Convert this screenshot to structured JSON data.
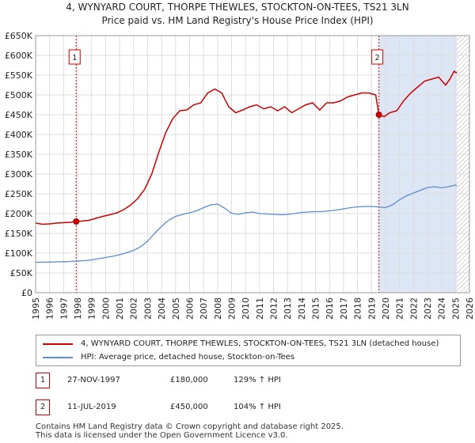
{
  "chart_data": {
    "type": "line",
    "title": "4, WYNYARD COURT, THORPE THEWLES, STOCKTON-ON-TEES, TS21 3LN",
    "subtitle": "Price paid vs. HM Land Registry's House Price Index (HPI)",
    "xlim": [
      1995,
      2026
    ],
    "ylim": [
      0,
      650000
    ],
    "x_ticks": [
      "1995",
      "1996",
      "1997",
      "1998",
      "1999",
      "2000",
      "2001",
      "2002",
      "2003",
      "2004",
      "2005",
      "2006",
      "2007",
      "2008",
      "2009",
      "2010",
      "2011",
      "2012",
      "2013",
      "2014",
      "2015",
      "2016",
      "2017",
      "2018",
      "2019",
      "2020",
      "2021",
      "2022",
      "2023",
      "2024",
      "2025",
      "2026"
    ],
    "y_ticks": [
      "£0",
      "£50K",
      "£100K",
      "£150K",
      "£200K",
      "£250K",
      "£300K",
      "£350K",
      "£400K",
      "£450K",
      "£500K",
      "£550K",
      "£600K",
      "£650K"
    ],
    "colors": {
      "property": "#cc0000",
      "hpi": "#5b8bd0",
      "shade": "#dde6f5",
      "grid": "#dddddd"
    },
    "series": [
      {
        "name": "4, WYNYARD COURT, THORPE THEWLES, STOCKTON-ON-TEES, TS21 3LN (detached house)",
        "color": "#cc0000",
        "x": [
          1995.0,
          1995.5,
          1996.0,
          1996.5,
          1997.0,
          1997.5,
          1997.9,
          1998.3,
          1998.8,
          1999.3,
          1999.8,
          2000.3,
          2000.8,
          2001.3,
          2001.8,
          2002.3,
          2002.8,
          2003.3,
          2003.8,
          2004.3,
          2004.8,
          2005.3,
          2005.8,
          2006.3,
          2006.8,
          2007.3,
          2007.8,
          2008.3,
          2008.8,
          2009.3,
          2009.8,
          2010.3,
          2010.8,
          2011.3,
          2011.8,
          2012.3,
          2012.8,
          2013.3,
          2013.8,
          2014.3,
          2014.8,
          2015.3,
          2015.8,
          2016.3,
          2016.8,
          2017.3,
          2017.8,
          2018.3,
          2018.8,
          2019.3,
          2019.53,
          2019.9,
          2020.3,
          2020.8,
          2021.3,
          2021.8,
          2022.3,
          2022.8,
          2023.3,
          2023.8,
          2024.3,
          2024.6,
          2024.9,
          2025.1
        ],
        "values": [
          176000,
          173000,
          174000,
          176000,
          177000,
          178000,
          180000,
          181000,
          183000,
          188000,
          193000,
          197000,
          202000,
          210000,
          222000,
          238000,
          262000,
          300000,
          355000,
          405000,
          440000,
          460000,
          462000,
          475000,
          480000,
          505000,
          515000,
          505000,
          470000,
          455000,
          462000,
          470000,
          475000,
          465000,
          470000,
          460000,
          470000,
          455000,
          465000,
          475000,
          480000,
          462000,
          480000,
          480000,
          485000,
          495000,
          500000,
          505000,
          505000,
          500000,
          450000,
          445000,
          455000,
          460000,
          485000,
          505000,
          520000,
          535000,
          540000,
          545000,
          525000,
          540000,
          560000,
          555000
        ]
      },
      {
        "name": "HPI: Average price, detached house, Stockton-on-Tees",
        "color": "#5b8bd0",
        "x": [
          1995.0,
          1995.5,
          1996.0,
          1996.5,
          1997.0,
          1997.5,
          1998.0,
          1998.5,
          1999.0,
          1999.5,
          2000.0,
          2000.5,
          2001.0,
          2001.5,
          2002.0,
          2002.5,
          2003.0,
          2003.5,
          2004.0,
          2004.5,
          2005.0,
          2005.5,
          2006.0,
          2006.5,
          2007.0,
          2007.5,
          2008.0,
          2008.5,
          2009.0,
          2009.5,
          2010.0,
          2010.5,
          2011.0,
          2011.5,
          2012.0,
          2012.5,
          2013.0,
          2013.5,
          2014.0,
          2014.5,
          2015.0,
          2015.5,
          2016.0,
          2016.5,
          2017.0,
          2017.5,
          2018.0,
          2018.5,
          2019.0,
          2019.5,
          2020.0,
          2020.5,
          2021.0,
          2021.5,
          2022.0,
          2022.5,
          2023.0,
          2023.5,
          2024.0,
          2024.5,
          2025.0,
          2025.1
        ],
        "values": [
          77000,
          77000,
          77500,
          78000,
          78500,
          79000,
          80000,
          81000,
          83000,
          86000,
          89000,
          92000,
          96000,
          101000,
          107000,
          116000,
          130000,
          150000,
          168000,
          183000,
          193000,
          198000,
          202000,
          207000,
          215000,
          222000,
          224000,
          214000,
          201000,
          198000,
          202000,
          204000,
          200000,
          199000,
          198000,
          197000,
          198000,
          200000,
          203000,
          204000,
          205000,
          205000,
          207000,
          209000,
          212000,
          215000,
          217000,
          218000,
          218000,
          217000,
          215000,
          222000,
          235000,
          245000,
          252000,
          259000,
          266000,
          268000,
          265000,
          268000,
          272000,
          270000
        ]
      }
    ],
    "sales": [
      {
        "num": "1",
        "x": 1997.9,
        "value": 180000,
        "date": "27-NOV-1997",
        "price": "£180,000",
        "hpi": "129% ↑ HPI"
      },
      {
        "num": "2",
        "x": 2019.53,
        "value": 450000,
        "date": "11-JUL-2019",
        "price": "£450,000",
        "hpi": "104% ↑ HPI"
      }
    ],
    "future_from": 2025.1
  },
  "footer": {
    "line1": "Contains HM Land Registry data © Crown copyright and database right 2025.",
    "line2": "This data is licensed under the Open Government Licence v3.0."
  }
}
